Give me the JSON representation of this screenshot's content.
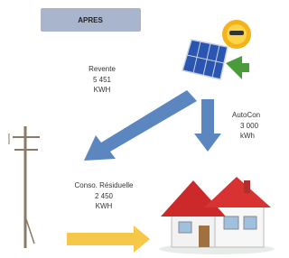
{
  "header": {
    "title": "APRES"
  },
  "flows": [
    {
      "label": "Revente",
      "value": "5 451",
      "unit": "KWH"
    },
    {
      "label": "AutoCon",
      "value": "3 000",
      "unit": "kWh"
    },
    {
      "label": "Conso. Résiduelle",
      "value": "2 450",
      "unit": "KWH"
    }
  ]
}
